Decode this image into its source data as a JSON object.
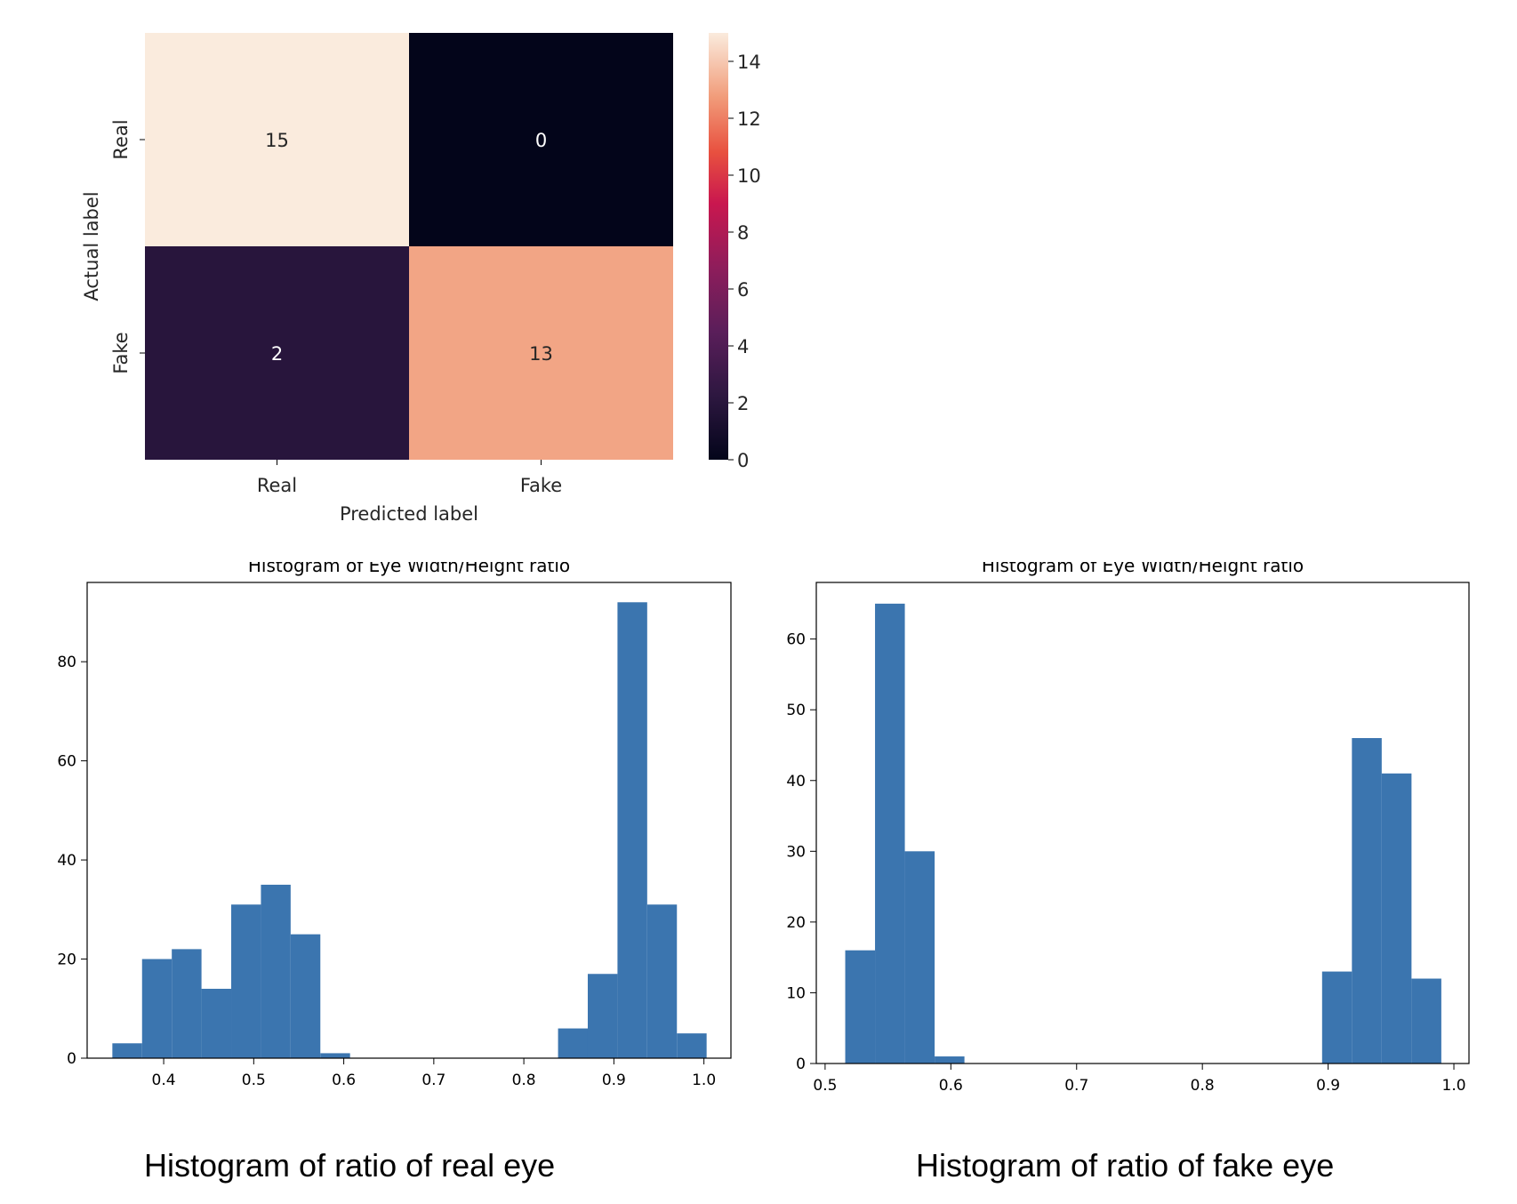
{
  "chart_data": [
    {
      "type": "heatmap",
      "row_labels": [
        "Real",
        "Fake"
      ],
      "col_labels": [
        "Real",
        "Fake"
      ],
      "values": [
        [
          15,
          0
        ],
        [
          2,
          13
        ]
      ],
      "xlabel": "Predicted label",
      "ylabel": "Actual label",
      "colorbar": {
        "ticks": [
          0,
          2,
          4,
          6,
          8,
          10,
          12,
          14
        ],
        "range": [
          0,
          15
        ]
      }
    },
    {
      "type": "bar",
      "title": "Histogram of Eye Width/Height ratio",
      "bin_edges": [
        0.343,
        0.376,
        0.409,
        0.442,
        0.475,
        0.508,
        0.541,
        0.574,
        0.607,
        0.64,
        0.673,
        0.706,
        0.739,
        0.772,
        0.805,
        0.838,
        0.871,
        0.904,
        0.937,
        0.97,
        1.003
      ],
      "values": [
        3,
        20,
        22,
        14,
        31,
        35,
        25,
        1,
        0,
        0,
        0,
        0,
        0,
        0,
        0,
        6,
        17,
        92,
        31,
        5
      ],
      "xlim": [
        0.315,
        1.03
      ],
      "ylim": [
        0,
        96
      ],
      "xticks": [
        "0.4",
        "0.5",
        "0.6",
        "0.7",
        "0.8",
        "0.9",
        "1.0"
      ],
      "yticks": [
        "0",
        "20",
        "40",
        "60",
        "80"
      ],
      "color": "#3b75af"
    },
    {
      "type": "bar",
      "title": "Histogram of Eye Width/Height ratio",
      "bin_edges": [
        0.516,
        0.5397,
        0.5634,
        0.5871,
        0.6108,
        0.6345,
        0.6582,
        0.6819,
        0.7056,
        0.7293,
        0.753,
        0.7767,
        0.8004,
        0.8241,
        0.8478,
        0.8715,
        0.8952,
        0.9189,
        0.9426,
        0.9663,
        0.99
      ],
      "values": [
        16,
        65,
        30,
        1,
        0,
        0,
        0,
        0,
        0,
        0,
        0,
        0,
        0,
        0,
        0,
        0,
        13,
        46,
        41,
        12
      ],
      "xlim": [
        0.493,
        1.012
      ],
      "ylim": [
        0,
        68
      ],
      "xticks": [
        "0.5",
        "0.6",
        "0.7",
        "0.8",
        "0.9",
        "1.0"
      ],
      "yticks": [
        "0",
        "10",
        "20",
        "30",
        "40",
        "50",
        "60"
      ],
      "color": "#3b75af"
    }
  ],
  "captions": {
    "real": "Histogram of ratio of real eye",
    "fake": "Histogram of ratio of fake eye"
  }
}
